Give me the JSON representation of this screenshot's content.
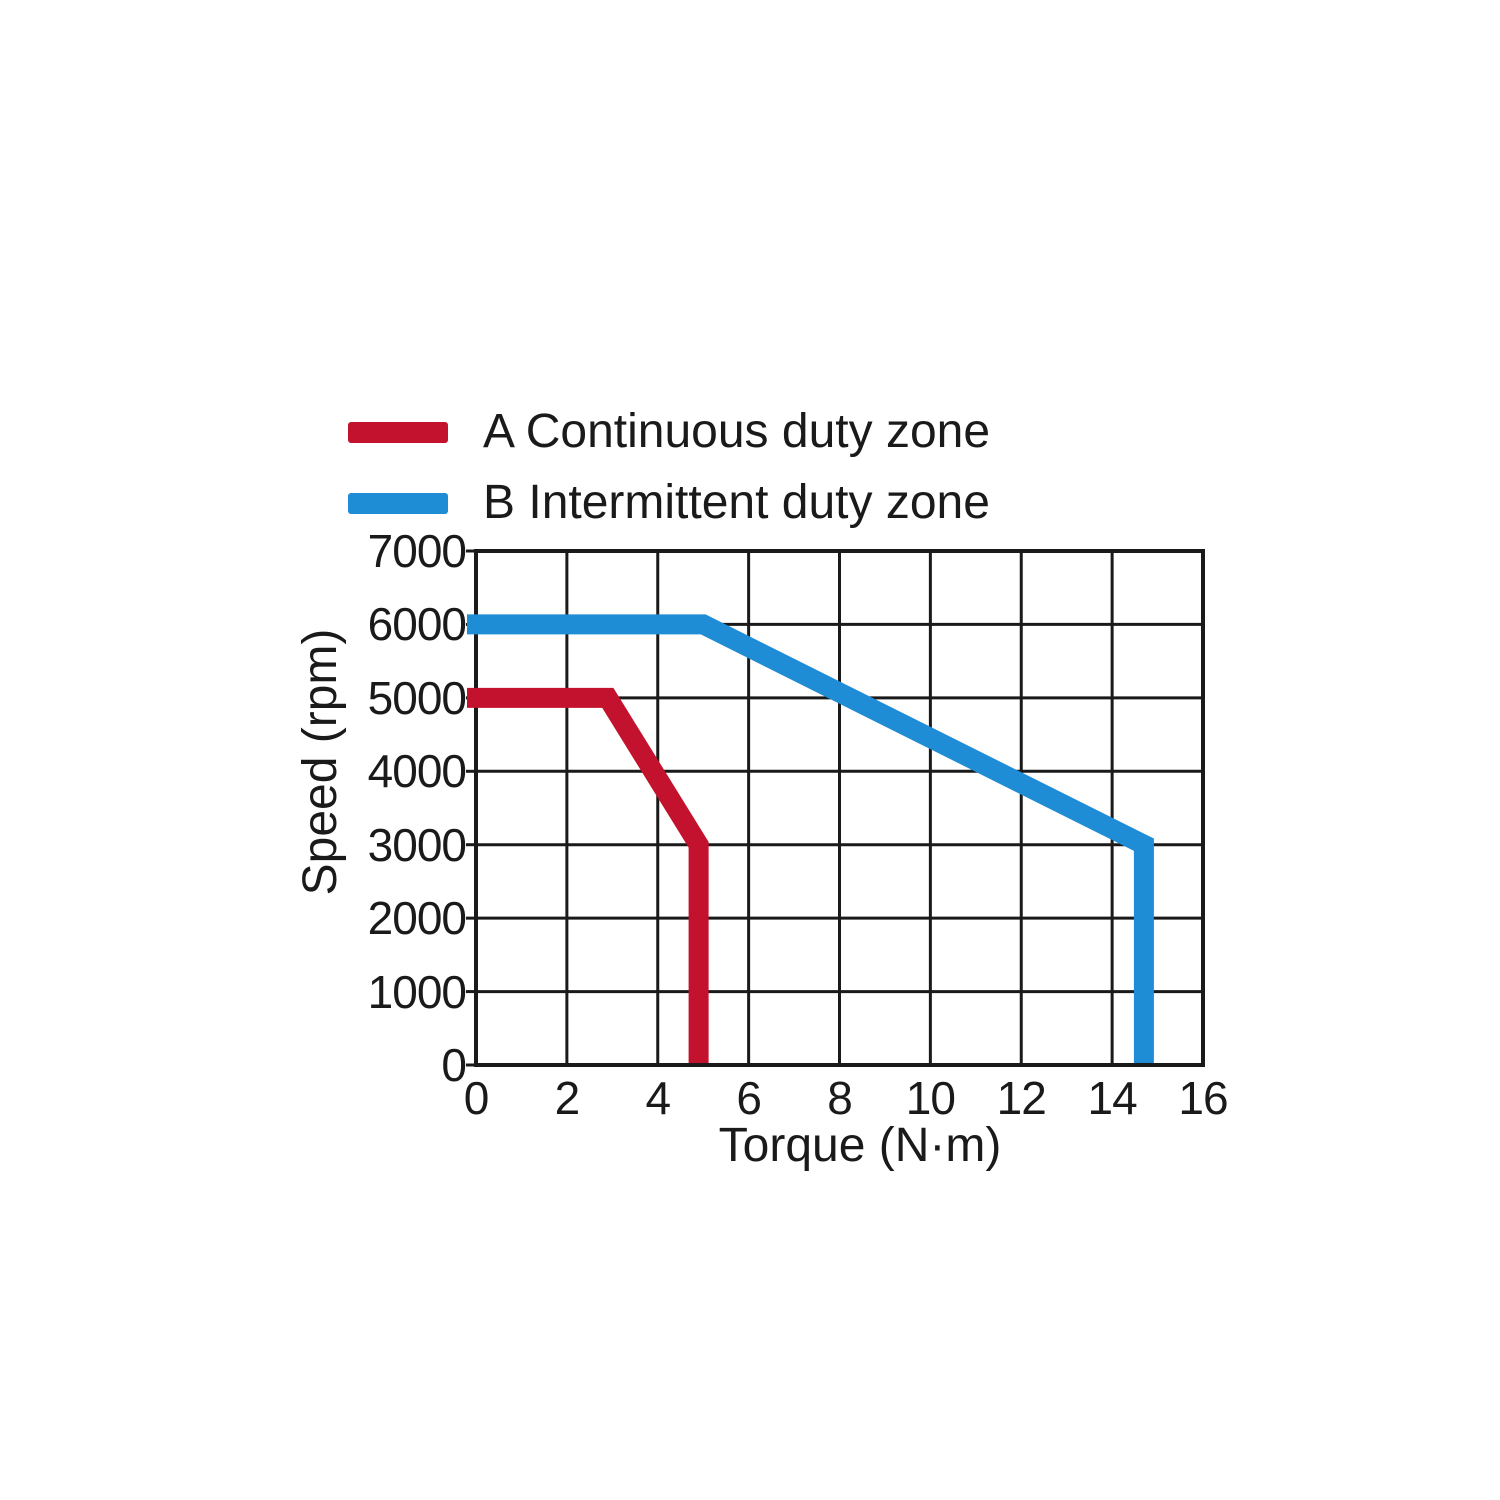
{
  "chart_data": {
    "type": "line",
    "xlabel": "Torque (N·m)",
    "ylabel": "Speed (rpm)",
    "xlim": [
      0,
      16
    ],
    "ylim": [
      0,
      7000
    ],
    "x_ticks": [
      0,
      2,
      4,
      6,
      8,
      10,
      12,
      14,
      16
    ],
    "y_ticks": [
      0,
      1000,
      2000,
      3000,
      4000,
      5000,
      6000,
      7000
    ],
    "grid": true,
    "grid_color": "#1a1a1a",
    "axis_color": "#1a1a1a",
    "legend_position": "above-plot-top-left",
    "series": [
      {
        "name": "A Continuous duty zone",
        "color": "#c3122d",
        "points": [
          [
            0,
            5000
          ],
          [
            2.9,
            5000
          ],
          [
            4.9,
            3000
          ],
          [
            4.9,
            0
          ]
        ]
      },
      {
        "name": "B Intermittent duty zone",
        "color": "#1e8dd6",
        "points": [
          [
            0,
            6000
          ],
          [
            5,
            6000
          ],
          [
            14.7,
            3000
          ],
          [
            14.7,
            0
          ]
        ]
      }
    ]
  }
}
